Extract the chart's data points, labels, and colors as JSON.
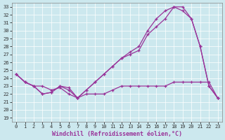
{
  "bg_color": "#cce8ee",
  "line_color": "#993399",
  "xlabel": "Windchill (Refroidissement éolien,°C)",
  "series1_x": [
    0,
    1,
    2,
    3,
    4,
    5,
    6,
    7,
    8,
    9,
    10,
    11,
    12,
    13,
    14,
    15,
    16,
    17,
    18,
    19,
    20,
    21,
    22,
    23
  ],
  "series1_y": [
    24.5,
    23.5,
    23.0,
    22.0,
    22.2,
    23.0,
    22.8,
    21.5,
    22.5,
    23.5,
    24.5,
    25.5,
    26.5,
    27.0,
    27.5,
    29.5,
    30.5,
    31.5,
    33.0,
    32.5,
    31.5,
    28.0,
    23.0,
    21.5
  ],
  "series2_x": [
    0,
    1,
    2,
    3,
    4,
    5,
    6,
    7,
    8,
    9,
    10,
    11,
    12,
    13,
    14,
    15,
    16,
    17,
    18,
    19,
    20,
    21,
    22,
    23
  ],
  "series2_y": [
    24.5,
    23.5,
    23.0,
    22.0,
    22.2,
    23.0,
    22.5,
    21.5,
    22.5,
    23.5,
    24.5,
    25.5,
    26.5,
    27.3,
    28.0,
    30.0,
    31.5,
    32.5,
    33.0,
    33.0,
    31.5,
    28.0,
    23.0,
    21.5
  ],
  "series3_x": [
    0,
    1,
    2,
    3,
    4,
    5,
    6,
    7,
    8,
    9,
    10,
    11,
    12,
    13,
    14,
    15,
    16,
    17,
    18,
    19,
    20,
    21,
    22,
    23
  ],
  "series3_y": [
    24.5,
    23.5,
    23.0,
    23.0,
    22.5,
    22.8,
    22.0,
    21.5,
    22.0,
    22.0,
    22.0,
    22.5,
    23.0,
    23.0,
    23.0,
    23.0,
    23.0,
    23.0,
    23.5,
    23.5,
    23.5,
    23.5,
    23.5,
    21.5
  ],
  "xlim": [
    -0.5,
    23.5
  ],
  "ylim": [
    18.5,
    33.5
  ],
  "xticks": [
    0,
    1,
    2,
    3,
    4,
    5,
    6,
    7,
    8,
    9,
    10,
    11,
    12,
    13,
    14,
    15,
    16,
    17,
    18,
    19,
    20,
    21,
    22,
    23
  ],
  "yticks": [
    19,
    20,
    21,
    22,
    23,
    24,
    25,
    26,
    27,
    28,
    29,
    30,
    31,
    32,
    33
  ],
  "grid_color": "#ffffff",
  "tick_fontsize": 5,
  "xlabel_fontsize": 6
}
